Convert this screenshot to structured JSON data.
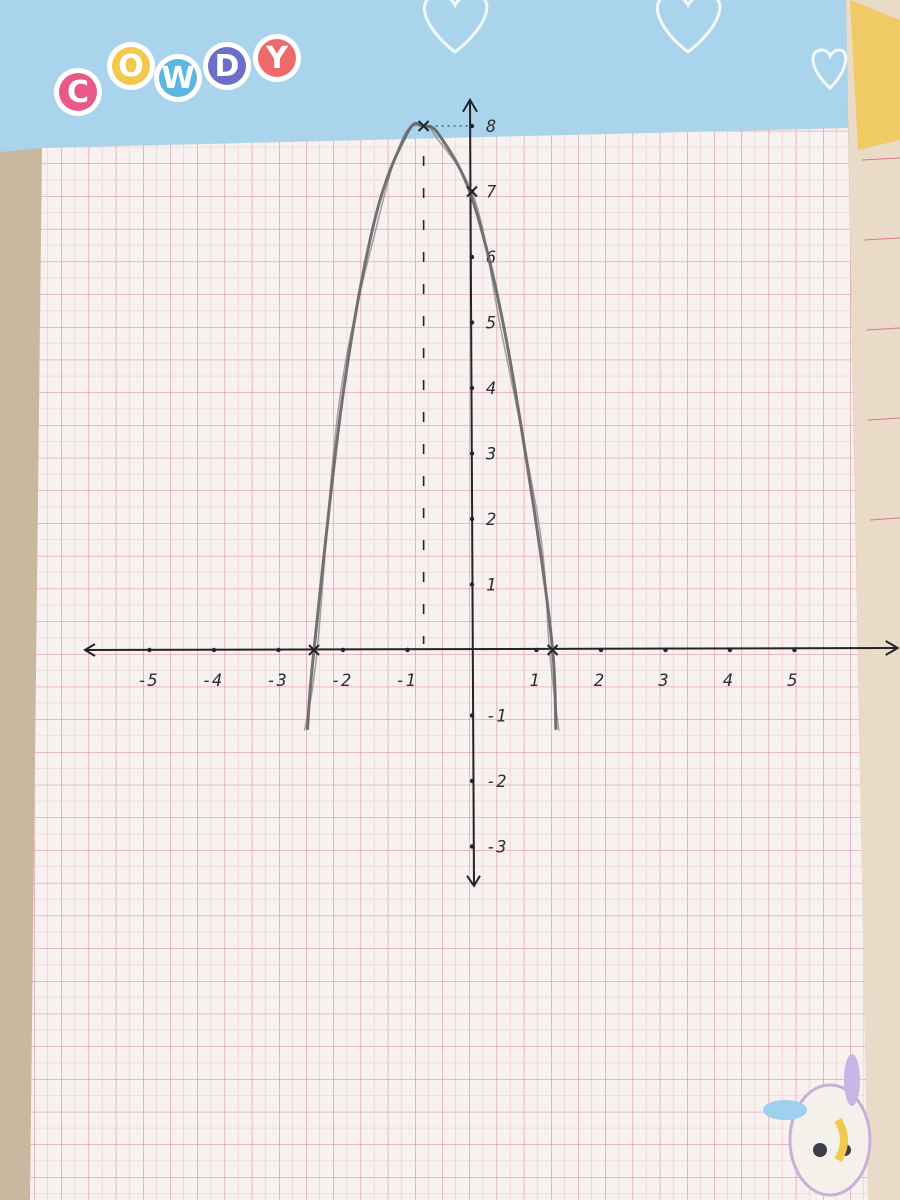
{
  "notebook": {
    "brand_letters": [
      "C",
      "O",
      "W",
      "D",
      "Y"
    ],
    "brand_colors": [
      "#e8598a",
      "#f2c94c",
      "#5bb6e0",
      "#6c6fc7",
      "#ee6a6a"
    ],
    "header_color": "#a9d4ec",
    "paper_color": "#f7f1ef",
    "grid_color": "#d7798f"
  },
  "chart_data": {
    "type": "line",
    "title": "",
    "xlabel": "",
    "ylabel": "",
    "xlim": [
      -6,
      6.6
    ],
    "ylim": [
      -3.6,
      8.4
    ],
    "x_ticks": [
      -5,
      -4,
      -3,
      -2,
      -1,
      1,
      2,
      3,
      4,
      5
    ],
    "x_tick_labels": [
      "-5",
      "-4",
      "-3",
      "-2",
      "-1",
      "1",
      "2",
      "3",
      "4",
      "5"
    ],
    "y_ticks": [
      8,
      7,
      6,
      5,
      4,
      3,
      2,
      1,
      -1,
      -2,
      -3
    ],
    "y_tick_labels": [
      "8",
      "7",
      "6",
      "5",
      "4",
      "3",
      "2",
      "1",
      "-1",
      "-2",
      "-3"
    ],
    "series": [
      {
        "x": [
          -2.55,
          -2.45,
          -2,
          -1.5,
          -1,
          -0.75,
          -0.5,
          0,
          0.5,
          1,
          1.25,
          1.3
        ],
        "y": [
          -1.2,
          0,
          3.9,
          6.6,
          7.9,
          8.0,
          7.85,
          6.9,
          4.9,
          1.9,
          0,
          -1.2
        ]
      }
    ],
    "vertex": {
      "x": -0.75,
      "y": 8
    },
    "symmetry_axis_x": -0.75,
    "roots": [
      -2.45,
      1.25
    ],
    "y_intercept": 7,
    "grid": true
  }
}
